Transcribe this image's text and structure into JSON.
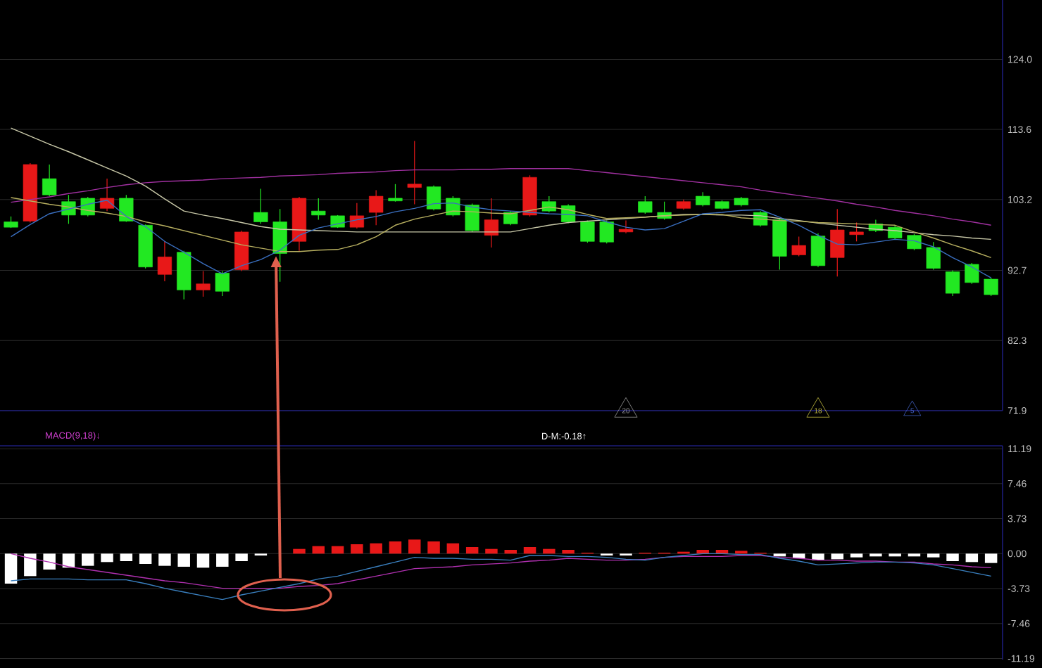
{
  "chart_data": [
    {
      "type": "candlestick",
      "categories": [
        null,
        null,
        null,
        null,
        null,
        null,
        null,
        null,
        null,
        null,
        null,
        null,
        null,
        null,
        null,
        null,
        null,
        null,
        null,
        null,
        null,
        null,
        null,
        null,
        null,
        null,
        null,
        null,
        null,
        null,
        null,
        null,
        null,
        null,
        null,
        null,
        null,
        null,
        null,
        null,
        null,
        null,
        null,
        null,
        null,
        null,
        null,
        null,
        null,
        null,
        null,
        null
      ],
      "ohlc": [
        [
          99.1,
          100.7,
          99.0,
          99.9
        ],
        [
          108.4,
          108.6,
          99.8,
          100.0
        ],
        [
          103.9,
          108.4,
          103.7,
          106.3
        ],
        [
          100.9,
          103.9,
          99.6,
          102.9
        ],
        [
          100.9,
          103.6,
          100.7,
          103.4
        ],
        [
          103.4,
          106.3,
          101.5,
          101.9
        ],
        [
          100.0,
          103.9,
          99.9,
          103.4
        ],
        [
          93.2,
          99.5,
          93.0,
          99.4
        ],
        [
          94.7,
          97.0,
          91.1,
          92.1
        ],
        [
          89.8,
          95.6,
          88.4,
          95.4
        ],
        [
          90.7,
          92.6,
          88.8,
          89.8
        ],
        [
          89.6,
          92.6,
          88.9,
          92.3
        ],
        [
          98.4,
          98.6,
          92.6,
          92.8
        ],
        [
          99.9,
          104.8,
          99.6,
          101.3
        ],
        [
          95.2,
          101.8,
          91.0,
          99.9
        ],
        [
          103.4,
          103.6,
          95.6,
          97.0
        ],
        [
          100.9,
          103.4,
          100.2,
          101.5
        ],
        [
          99.1,
          100.9,
          99.0,
          100.8
        ],
        [
          100.8,
          102.7,
          98.9,
          99.1
        ],
        [
          103.7,
          104.6,
          99.4,
          101.3
        ],
        [
          103.0,
          105.5,
          102.9,
          103.4
        ],
        [
          105.5,
          111.9,
          102.5,
          105.0
        ],
        [
          101.8,
          105.3,
          101.6,
          105.1
        ],
        [
          100.9,
          103.7,
          100.7,
          103.4
        ],
        [
          98.6,
          102.6,
          98.4,
          102.4
        ],
        [
          100.2,
          103.4,
          96.1,
          97.9
        ],
        [
          99.6,
          101.5,
          99.4,
          101.3
        ],
        [
          106.5,
          106.8,
          100.7,
          100.9
        ],
        [
          101.5,
          103.7,
          101.3,
          102.9
        ],
        [
          99.9,
          102.5,
          99.7,
          102.3
        ],
        [
          97.0,
          100.1,
          96.8,
          99.9
        ],
        [
          96.9,
          100.1,
          96.7,
          99.9
        ],
        [
          98.8,
          100.1,
          98.2,
          98.4
        ],
        [
          101.3,
          103.7,
          101.1,
          102.9
        ],
        [
          100.4,
          102.9,
          100.2,
          101.3
        ],
        [
          102.9,
          103.2,
          101.7,
          101.9
        ],
        [
          102.4,
          104.3,
          102.2,
          103.7
        ],
        [
          101.9,
          103.1,
          101.7,
          102.9
        ],
        [
          102.4,
          103.6,
          102.2,
          103.4
        ],
        [
          99.4,
          101.5,
          99.2,
          101.3
        ],
        [
          94.8,
          100.4,
          92.8,
          100.2
        ],
        [
          96.4,
          97.7,
          94.8,
          95.0
        ],
        [
          93.4,
          98.2,
          93.2,
          97.8
        ],
        [
          98.7,
          101.8,
          91.8,
          94.6
        ],
        [
          98.4,
          99.8,
          97.0,
          98.0
        ],
        [
          98.6,
          100.2,
          98.4,
          99.6
        ],
        [
          97.5,
          99.4,
          97.3,
          99.1
        ],
        [
          95.9,
          98.1,
          95.7,
          97.9
        ],
        [
          93.0,
          96.9,
          92.8,
          96.1
        ],
        [
          89.3,
          92.7,
          88.9,
          92.5
        ],
        [
          90.9,
          93.8,
          90.7,
          93.6
        ],
        [
          89.1,
          91.6,
          88.9,
          91.4
        ]
      ],
      "colors": [
        "#22e822",
        "#e81818",
        "#22e822",
        "#22e822",
        "#22e822",
        "#e81818",
        "#22e822",
        "#22e822",
        "#e81818",
        "#22e822",
        "#e81818",
        "#22e822",
        "#e81818",
        "#22e822",
        "#22e822",
        "#e81818",
        "#22e822",
        "#22e822",
        "#e81818",
        "#e81818",
        "#22e822",
        "#e81818",
        "#22e822",
        "#22e822",
        "#22e822",
        "#e81818",
        "#22e822",
        "#e81818",
        "#22e822",
        "#22e822",
        "#22e822",
        "#22e822",
        "#e81818",
        "#22e822",
        "#22e822",
        "#e81818",
        "#22e822",
        "#22e822",
        "#22e822",
        "#22e822",
        "#22e822",
        "#e81818",
        "#22e822",
        "#e81818",
        "#e81818",
        "#22e822",
        "#22e822",
        "#22e822",
        "#22e822",
        "#22e822",
        "#22e822",
        "#22e822"
      ],
      "series": [
        {
          "type": "line",
          "color": "#a030a0",
          "values": [
            102.8,
            103.2,
            103.6,
            104.1,
            104.5,
            105.0,
            105.4,
            105.7,
            105.9,
            106.0,
            106.1,
            106.3,
            106.4,
            106.5,
            106.7,
            106.8,
            106.9,
            107.1,
            107.2,
            107.3,
            107.5,
            107.6,
            107.6,
            107.6,
            107.7,
            107.7,
            107.8,
            107.8,
            107.8,
            107.8,
            107.5,
            107.2,
            106.9,
            106.6,
            106.3,
            106.0,
            105.7,
            105.4,
            105.1,
            104.6,
            104.2,
            103.8,
            103.4,
            103.0,
            102.5,
            102.1,
            101.6,
            101.2,
            100.8,
            100.3,
            99.9,
            99.4
          ]
        },
        {
          "type": "line",
          "color": "#c8c8a8",
          "values": [
            113.8,
            112.6,
            111.4,
            110.3,
            109.1,
            107.9,
            106.7,
            105.2,
            103.3,
            101.5,
            100.9,
            100.4,
            99.8,
            99.2,
            98.8,
            98.7,
            98.6,
            98.5,
            98.4,
            98.4,
            98.4,
            98.4,
            98.4,
            98.4,
            98.4,
            98.4,
            98.4,
            98.9,
            99.4,
            99.8,
            100.0,
            100.2,
            100.4,
            100.6,
            100.8,
            101.0,
            101.0,
            100.9,
            100.9,
            100.8,
            100.4,
            100.1,
            99.7,
            99.4,
            99.1,
            98.8,
            98.6,
            98.3,
            98.0,
            97.8,
            97.5,
            97.3
          ]
        },
        {
          "type": "line",
          "color": "#b8b060",
          "values": [
            103.5,
            103.0,
            102.5,
            102.1,
            101.6,
            101.2,
            100.7,
            99.9,
            99.3,
            98.6,
            97.9,
            97.2,
            96.5,
            96.0,
            95.5,
            95.5,
            95.7,
            95.8,
            96.5,
            97.7,
            99.4,
            100.3,
            100.9,
            101.5,
            101.4,
            101.2,
            101.1,
            101.6,
            102.1,
            101.7,
            101.0,
            100.4,
            100.5,
            100.6,
            100.8,
            100.9,
            101.0,
            101.0,
            100.5,
            100.3,
            100.1,
            100.0,
            99.8,
            99.7,
            99.6,
            99.5,
            99.4,
            98.4,
            97.5,
            96.5,
            95.6,
            94.6
          ]
        },
        {
          "type": "line",
          "color": "#3a6fc0",
          "values": [
            97.7,
            99.5,
            101.1,
            101.8,
            102.5,
            103.1,
            100.7,
            99.2,
            97.0,
            95.4,
            93.7,
            92.2,
            93.4,
            94.3,
            95.7,
            97.9,
            99.0,
            99.6,
            100.2,
            100.7,
            101.4,
            101.9,
            102.6,
            102.7,
            102.1,
            101.7,
            101.5,
            101.3,
            101.1,
            101.0,
            100.8,
            99.9,
            99.1,
            98.7,
            98.9,
            100.0,
            101.1,
            101.3,
            101.6,
            101.7,
            100.6,
            99.4,
            97.9,
            96.6,
            96.5,
            96.9,
            97.3,
            97.1,
            96.2,
            94.6,
            93.2,
            91.6
          ]
        }
      ],
      "ylim": [
        71.9,
        132.8
      ],
      "yticks": [
        71.9,
        82.3,
        92.7,
        103.2,
        113.6,
        {
          "value": 124,
          "label": "124.0"
        }
      ],
      "grid": "y",
      "tick_labels": "y",
      "annotations": [
        "20",
        "18",
        "5"
      ]
    },
    {
      "type": "bar",
      "title": "MACD(9,18)↓",
      "categories": [
        null,
        null,
        null,
        null,
        null,
        null,
        null,
        null,
        null,
        null,
        null,
        null,
        null,
        null,
        null,
        null,
        null,
        null,
        null,
        null,
        null,
        null,
        null,
        null,
        null,
        null,
        null,
        null,
        null,
        null,
        null,
        null,
        null,
        null,
        null,
        null,
        null,
        null,
        null,
        null,
        null,
        null,
        null,
        null,
        null,
        null,
        null,
        null,
        null,
        null,
        null,
        null
      ],
      "series": [
        {
          "type": "bar",
          "values": [
            -3.2,
            -2.4,
            -1.7,
            -1.5,
            -1.3,
            -0.9,
            -0.8,
            -1.1,
            -1.3,
            -1.4,
            -1.5,
            -1.4,
            -0.8,
            -0.2,
            0.0,
            0.5,
            0.8,
            0.8,
            1.0,
            1.1,
            1.3,
            1.5,
            1.3,
            1.1,
            0.7,
            0.5,
            0.4,
            0.7,
            0.5,
            0.4,
            0.1,
            -0.2,
            -0.2,
            0.1,
            0.1,
            0.2,
            0.4,
            0.4,
            0.3,
            0.1,
            -0.3,
            -0.5,
            -0.7,
            -0.6,
            -0.4,
            -0.3,
            -0.3,
            -0.3,
            -0.4,
            -0.8,
            -0.9,
            -1.0
          ],
          "colors": [
            "#ffffff",
            "#ffffff",
            "#ffffff",
            "#ffffff",
            "#ffffff",
            "#ffffff",
            "#ffffff",
            "#ffffff",
            "#ffffff",
            "#ffffff",
            "#ffffff",
            "#ffffff",
            "#ffffff",
            "#ffffff",
            "#ffffff",
            "#e81818",
            "#e81818",
            "#e81818",
            "#e81818",
            "#e81818",
            "#e81818",
            "#e81818",
            "#e81818",
            "#e81818",
            "#e81818",
            "#e81818",
            "#e81818",
            "#e81818",
            "#e81818",
            "#e81818",
            "#e81818",
            "#ffffff",
            "#ffffff",
            "#e81818",
            "#e81818",
            "#e81818",
            "#e81818",
            "#e81818",
            "#e81818",
            "#e81818",
            "#ffffff",
            "#ffffff",
            "#ffffff",
            "#ffffff",
            "#ffffff",
            "#ffffff",
            "#ffffff",
            "#ffffff",
            "#ffffff",
            "#ffffff",
            "#ffffff",
            "#ffffff"
          ]
        },
        {
          "type": "line",
          "color": "#b030b0",
          "values": [
            0.0,
            -0.5,
            -0.9,
            -1.4,
            -1.7,
            -2.0,
            -2.3,
            -2.6,
            -2.9,
            -3.1,
            -3.4,
            -3.7,
            -3.7,
            -3.7,
            -3.7,
            -3.5,
            -3.4,
            -3.2,
            -2.8,
            -2.4,
            -2.0,
            -1.6,
            -1.5,
            -1.4,
            -1.2,
            -1.1,
            -1.0,
            -0.8,
            -0.7,
            -0.5,
            -0.6,
            -0.7,
            -0.7,
            -0.6,
            -0.4,
            -0.3,
            -0.3,
            -0.3,
            -0.2,
            -0.2,
            -0.4,
            -0.5,
            -0.7,
            -0.7,
            -0.8,
            -0.8,
            -0.9,
            -0.9,
            -1.1,
            -1.2,
            -1.4,
            -1.5
          ]
        },
        {
          "type": "line",
          "color": "#3a80c0",
          "values": [
            -2.9,
            -2.7,
            -2.7,
            -2.7,
            -2.8,
            -2.8,
            -2.8,
            -3.2,
            -3.7,
            -4.1,
            -4.5,
            -4.9,
            -4.4,
            -4.0,
            -3.6,
            -3.2,
            -2.7,
            -2.4,
            -1.9,
            -1.4,
            -0.9,
            -0.4,
            -0.5,
            -0.5,
            -0.6,
            -0.6,
            -0.7,
            -0.2,
            -0.2,
            -0.3,
            -0.3,
            -0.4,
            -0.6,
            -0.7,
            -0.4,
            -0.2,
            0.0,
            0.0,
            -0.1,
            -0.1,
            -0.5,
            -0.8,
            -1.2,
            -1.1,
            -1.0,
            -0.9,
            -0.9,
            -1.0,
            -1.2,
            -1.6,
            -2.0,
            -2.4
          ]
        }
      ],
      "ylim": [
        -11.3,
        11.5
      ],
      "yticks": [
        -11.19,
        -7.46,
        -3.73,
        {
          "value": 0,
          "label": "0.00"
        },
        3.73,
        7.46,
        11.19
      ],
      "grid": "y",
      "tick_labels": "y",
      "annotations": [
        "D-M:-0.18↑"
      ]
    }
  ]
}
